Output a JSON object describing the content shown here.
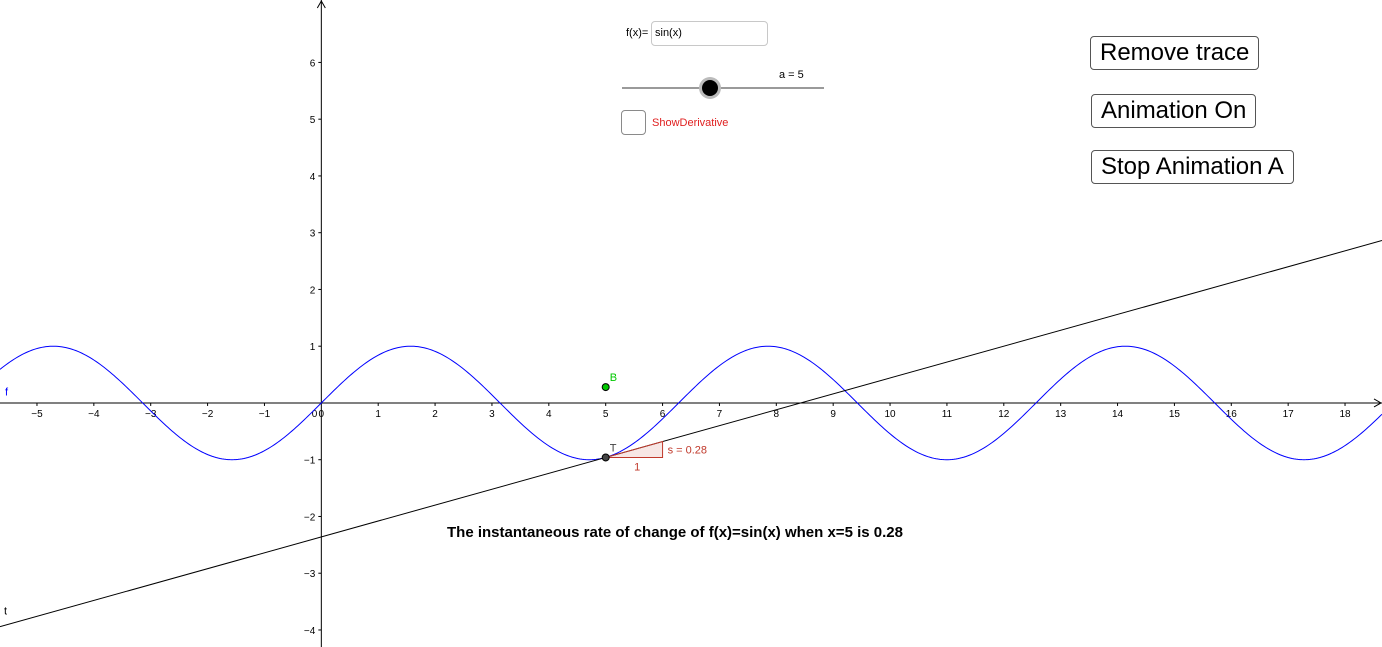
{
  "controls": {
    "function_label": "f(x)=",
    "function_value": "sin(x)",
    "slider_label": "a = 5",
    "slider_value": 5,
    "checkbox_label": "ShowDerivative",
    "checkbox_checked": false
  },
  "buttons": {
    "remove_trace": "Remove trace",
    "animation_on": "Animation On",
    "stop_animation": "Stop Animation A"
  },
  "caption": "The instantaneous rate of change of f(x)=sin(x) when x=5 is 0.28",
  "chart_data": {
    "type": "line",
    "x_ticks": [
      -5,
      -4,
      -3,
      -2,
      -1,
      0,
      1,
      2,
      3,
      4,
      5,
      6,
      7,
      8,
      9,
      10,
      11,
      12,
      13,
      14,
      15,
      16,
      17,
      18
    ],
    "y_ticks": [
      -4,
      -3,
      -2,
      -1,
      1,
      2,
      3,
      4,
      5,
      6
    ],
    "xlim": [
      -5.65,
      18.65
    ],
    "ylim": [
      -4.3,
      7.1
    ],
    "grid": false,
    "series": [
      {
        "name": "f",
        "expression": "sin(x)",
        "color": "#0000ff"
      },
      {
        "name": "t",
        "slope": 0.28,
        "point": [
          5,
          -0.96
        ],
        "color": "#000000"
      }
    ],
    "points": [
      {
        "name": "T",
        "x": 5,
        "y": -0.96,
        "color": "#444444"
      },
      {
        "name": "B",
        "x": 5,
        "y": 0.28,
        "color": "#00c800"
      }
    ],
    "slope_triangle": {
      "label": "s = 0.28",
      "run_label": "1",
      "color": "#c0392b"
    },
    "origin_label": "0"
  }
}
